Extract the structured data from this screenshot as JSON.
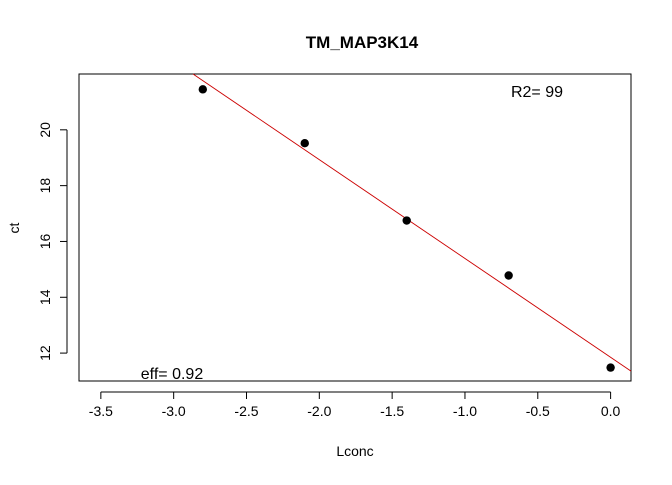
{
  "chart_data": {
    "type": "scatter",
    "title": "TM_MAP3K14",
    "xlabel": "Lconc",
    "ylabel": "ct",
    "xlim": [
      -3.65,
      0.14
    ],
    "ylim": [
      11.0,
      22.0
    ],
    "x_ticks": [
      -3.5,
      -3.0,
      -2.5,
      -2.0,
      -1.5,
      -1.0,
      -0.5,
      0.0
    ],
    "x_tick_labels": [
      "-3.5",
      "-3.0",
      "-2.5",
      "-2.0",
      "-1.5",
      "-1.0",
      "-0.5",
      "0.0"
    ],
    "y_ticks": [
      12,
      14,
      16,
      18,
      20
    ],
    "y_tick_labels": [
      "12",
      "14",
      "16",
      "18",
      "20"
    ],
    "grid": false,
    "series": [
      {
        "x": [
          -2.8,
          -2.1,
          -1.4,
          -0.7,
          0.0
        ],
        "y": [
          21.45,
          19.52,
          16.75,
          14.78,
          11.48
        ],
        "color": "#000000"
      }
    ],
    "fit_line": {
      "slope": -3.54,
      "intercept": 11.85,
      "color": "#cc0000"
    },
    "annotations": {
      "r2": "R2= 99",
      "eff": "eff= 0.92"
    }
  }
}
